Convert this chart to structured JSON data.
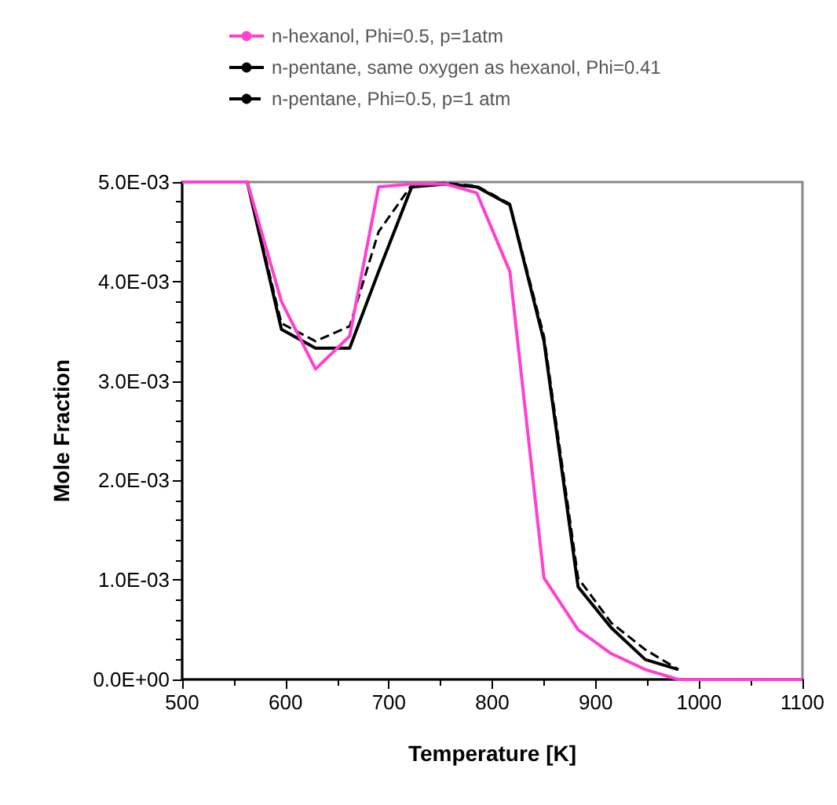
{
  "chart_data": {
    "type": "line",
    "xlabel": "Temperature [K]",
    "ylabel": "Mole Fraction",
    "x": [
      500,
      563,
      596,
      629,
      662,
      690,
      722,
      755,
      785,
      817,
      850,
      883,
      915,
      948,
      980,
      1013,
      1045,
      1078,
      1100
    ],
    "series": [
      {
        "name": "n-hexanol, Phi=0.5, p=1atm",
        "color": "#ff40d0",
        "line_style": "solid",
        "values": [
          0.005,
          0.005,
          0.0038,
          0.00312,
          0.00345,
          0.00495,
          0.00498,
          0.00498,
          0.00489,
          0.0041,
          0.00102,
          0.0005,
          0.00026,
          0.0001,
          0,
          0,
          0,
          0,
          0
        ]
      },
      {
        "name": "n-pentane, same oxygen as hexanol, Phi=0.41",
        "color": "#000000",
        "line_style": "solid",
        "values": [
          0.005,
          0.005,
          0.00352,
          0.00333,
          0.00333,
          0.0041,
          0.00495,
          0.00498,
          0.00495,
          0.00477,
          0.0034,
          0.00093,
          0.00052,
          0.0002,
          0.0001,
          null,
          null,
          null,
          null
        ]
      },
      {
        "name": "n-pentane, Phi=0.5, p=1 atm",
        "color": "#000000",
        "line_style": "dashed",
        "values": [
          0.005,
          0.005,
          0.00358,
          0.0034,
          0.00355,
          0.0045,
          0.00497,
          0.00499,
          0.00496,
          0.00478,
          0.00345,
          0.00102,
          0.00057,
          0.0003,
          0.0001,
          null,
          null,
          null,
          null
        ]
      }
    ],
    "xlim": [
      500,
      1100
    ],
    "xticks": [
      500,
      600,
      700,
      800,
      900,
      1000,
      1100
    ],
    "ylim": [
      0,
      0.005
    ],
    "yticks": [
      {
        "value": 0,
        "label": "0.0E+00"
      },
      {
        "value": 0.001,
        "label": "1.0E-03"
      },
      {
        "value": 0.002,
        "label": "2.0E-03"
      },
      {
        "value": 0.003,
        "label": "3.0E-03"
      },
      {
        "value": 0.004,
        "label": "4.0E-03"
      },
      {
        "value": 0.005,
        "label": "5.0E-03"
      }
    ],
    "legend": "top",
    "grid": false,
    "marker": "none"
  }
}
